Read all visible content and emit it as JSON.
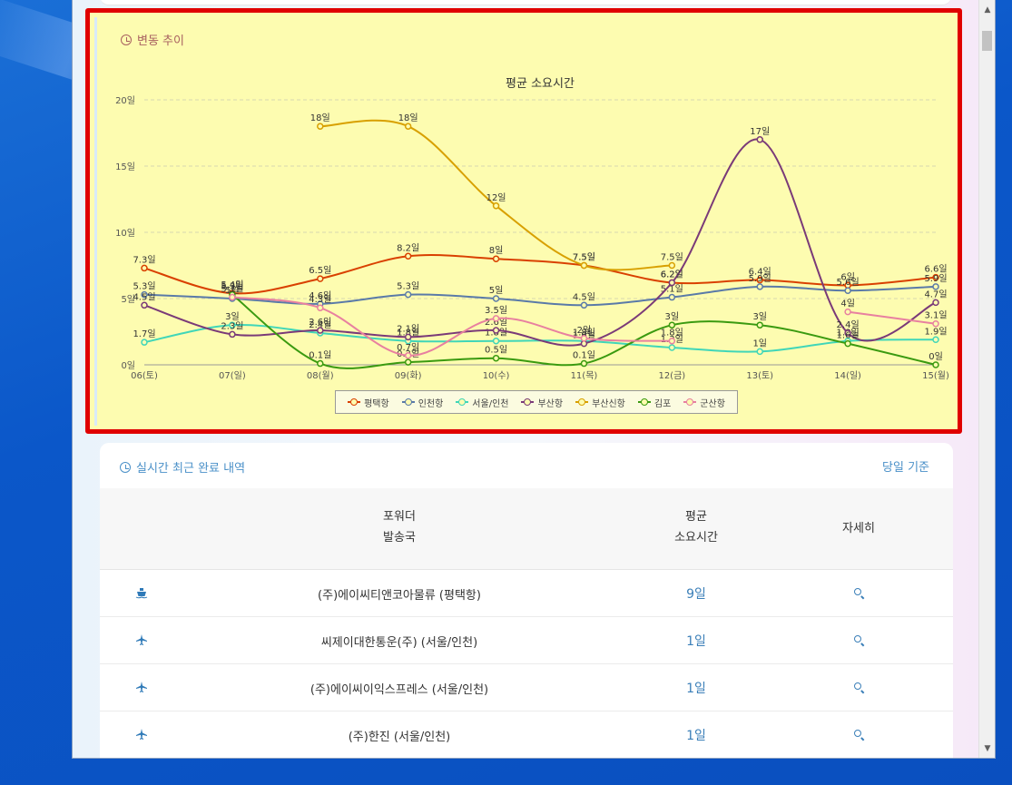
{
  "chart_section": {
    "title": "변동 추이"
  },
  "chart_data": {
    "type": "line",
    "title": "평균 소요시간",
    "categories": [
      "06(토)",
      "07(일)",
      "08(월)",
      "09(화)",
      "10(수)",
      "11(목)",
      "12(금)",
      "13(토)",
      "14(일)",
      "15(월)"
    ],
    "y_ticks": [
      "0일",
      "5일",
      "10일",
      "15일",
      "20일"
    ],
    "ylim": [
      0,
      20
    ],
    "unit": "일",
    "grid": true,
    "legend_position": "bottom",
    "series": [
      {
        "name": "평택항",
        "color": "#d94000",
        "values": [
          7.3,
          5.4,
          6.5,
          8.2,
          8,
          7.5,
          6.2,
          6.4,
          6,
          6.6
        ]
      },
      {
        "name": "인천항",
        "color": "#5a7aa8",
        "values": [
          5.3,
          5,
          4.6,
          5.3,
          5,
          4.5,
          5.1,
          5.9,
          5.6,
          5.9
        ]
      },
      {
        "name": "서울/인천",
        "color": "#40d6b8",
        "values": [
          1.7,
          3,
          2.4,
          1.8,
          1.8,
          1.8,
          1.3,
          1,
          1.8,
          1.9
        ]
      },
      {
        "name": "부산항",
        "color": "#7a3a78",
        "values": [
          4.5,
          2.3,
          2.6,
          2.1,
          2.6,
          1.6,
          6.2,
          17,
          2.4,
          4.7
        ]
      },
      {
        "name": "부산신항",
        "color": "#d8a000",
        "values": [
          null,
          null,
          18,
          18,
          12,
          7.5,
          7.5,
          null,
          null,
          null
        ]
      },
      {
        "name": "김포",
        "color": "#3a9a10",
        "values": [
          null,
          5.3,
          0.1,
          0.2,
          0.5,
          0.1,
          3,
          3,
          1.6,
          0
        ]
      },
      {
        "name": "군산항",
        "color": "#e880a0",
        "values": [
          null,
          5.1,
          4.3,
          0.7,
          3.5,
          2,
          1.8,
          null,
          4,
          3.1
        ]
      }
    ]
  },
  "list_section": {
    "title": "실시간 최근 완료 내역",
    "basis": "당일 기준",
    "headers": {
      "forwarder_line1": "포워더",
      "forwarder_line2": "발송국",
      "avg_line1": "평균",
      "avg_line2": "소요시간",
      "detail": "자세히"
    },
    "rows": [
      {
        "icon": "ship-icon",
        "name": "(주)에이씨티앤코아물류 (평택항)",
        "days": "9일"
      },
      {
        "icon": "airplane-icon",
        "name": "씨제이대한통운(주) (서울/인천)",
        "days": "1일"
      },
      {
        "icon": "airplane-icon",
        "name": "(주)에이씨이익스프레스 (서울/인천)",
        "days": "1일"
      },
      {
        "icon": "airplane-icon",
        "name": "(주)한진 (서울/인천)",
        "days": "1일"
      }
    ]
  }
}
